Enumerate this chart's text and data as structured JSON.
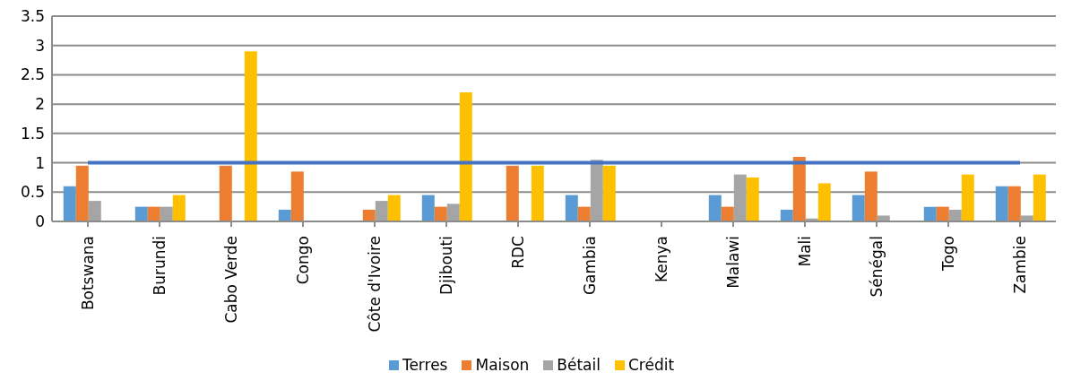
{
  "chart_data": {
    "type": "bar",
    "categories": [
      "Botswana",
      "Burundi",
      "Cabo Verde",
      "Congo",
      "Côte d'Ivoire",
      "Djibouti",
      "RDC",
      "Gambia",
      "Kenya",
      "Malawi",
      "Mali",
      "Sénégal",
      "Togo",
      "Zambie"
    ],
    "series": [
      {
        "name": "Terres",
        "color": "#5b9bd5",
        "values": [
          0.6,
          0.25,
          0,
          0.2,
          0,
          0.45,
          0,
          0.45,
          0,
          0.45,
          0.2,
          0.45,
          0.25,
          0.6
        ]
      },
      {
        "name": "Maison",
        "color": "#ed7d31",
        "values": [
          0.95,
          0.25,
          0.95,
          0.85,
          0.2,
          0.25,
          0.95,
          0.25,
          0,
          0.25,
          1.1,
          0.85,
          0.25,
          0.6
        ]
      },
      {
        "name": "Bétail",
        "color": "#a5a5a5",
        "values": [
          0.35,
          0.25,
          0,
          0,
          0.35,
          0.3,
          0,
          1.05,
          0,
          0.8,
          0.05,
          0.1,
          0.2,
          0.1
        ]
      },
      {
        "name": "Crédit",
        "color": "#ffc000",
        "values": [
          0,
          0.45,
          2.9,
          0,
          0.45,
          2.2,
          0.95,
          0.95,
          0,
          0.75,
          0.65,
          0,
          0.8,
          0.8
        ]
      },
      {
        "type": "line",
        "color": "#4472c4",
        "values": [
          1,
          1,
          1,
          1,
          1,
          1,
          1,
          1,
          1,
          1,
          1,
          1,
          1,
          1
        ]
      }
    ],
    "ylim": [
      0,
      3.5
    ],
    "yticks": [
      0,
      0.5,
      1,
      1.5,
      2,
      2.5,
      3,
      3.5
    ],
    "grid": "y",
    "legend": "bottom",
    "marker": "none"
  }
}
